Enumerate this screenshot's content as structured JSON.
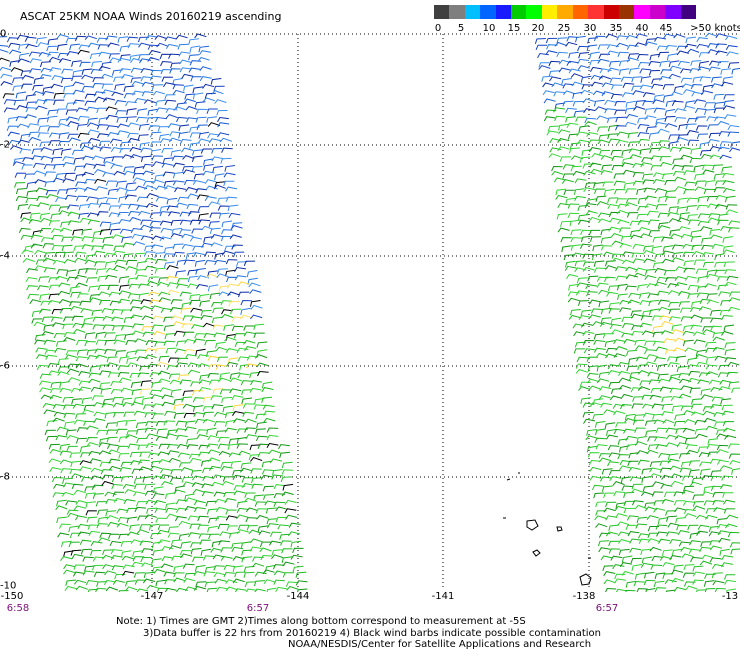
{
  "title": "ASCAT 25KM NOAA Winds 20160219 ascending",
  "legend": {
    "colors": [
      "#404040",
      "#7f7f7f",
      "#00bfff",
      "#0066ff",
      "#1a1aff",
      "#00cc00",
      "#00ff00",
      "#ffee00",
      "#ffaa00",
      "#ff6600",
      "#ff3333",
      "#cc0000",
      "#993300",
      "#ff00ff",
      "#cc00cc",
      "#8000ff",
      "#400080"
    ],
    "labels": [
      "0",
      "5",
      "10",
      "15",
      "20",
      "25",
      "30",
      "35",
      "40",
      "45",
      ">50 knots"
    ]
  },
  "map": {
    "lat_labels": [
      "0",
      "-2",
      "-4",
      "-6",
      "-8",
      "-10"
    ],
    "lon_labels": [
      "-150",
      "-147",
      "-144",
      "-141",
      "-138",
      "-13"
    ],
    "time_labels": [
      "6:58",
      "6:57",
      "6:57"
    ]
  },
  "notes": {
    "line1": "Note: 1) Times are GMT 2)Times along bottom correspond to measurement at -5S",
    "line2": "3)Data buffer is 22 hrs from 20160219 4) Black wind barbs indicate possible contamination",
    "line3": "NOAA/NESDIS/Center for Satellite Applications and Research"
  }
}
